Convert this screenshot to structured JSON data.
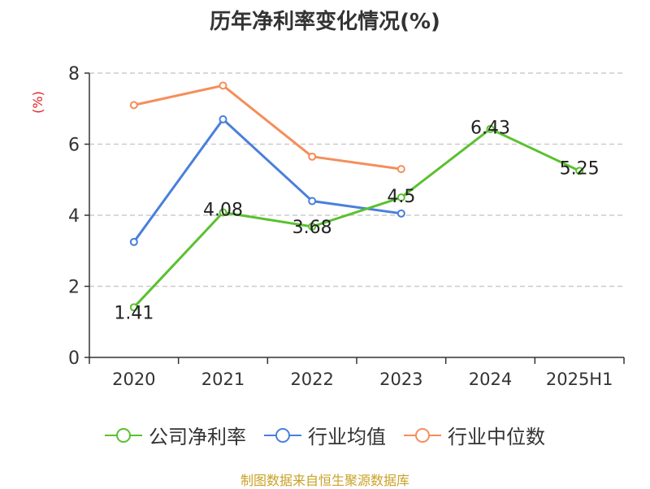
{
  "page": {
    "title": "历年净利率变化情况(%)",
    "source": "制图数据来自恒生聚源数据库"
  },
  "chart_data": {
    "type": "line",
    "title": "历年净利率变化情况(%)",
    "ylabel": "(%)",
    "xlabel": "",
    "categories": [
      "2020",
      "2021",
      "2022",
      "2023",
      "2024",
      "2025H1"
    ],
    "ylim": [
      0,
      8
    ],
    "yticks": [
      0,
      2,
      4,
      6,
      8
    ],
    "grid": true,
    "legend_position": "bottom",
    "series": [
      {
        "name": "公司净利率",
        "color": "#5ac12e",
        "values": [
          1.41,
          4.08,
          3.68,
          4.5,
          6.43,
          5.25
        ],
        "labels": [
          "1.41",
          "4.08",
          "3.68",
          "4.5",
          "6.43",
          "5.25"
        ]
      },
      {
        "name": "行业均值",
        "color": "#4a7fdc",
        "values": [
          3.25,
          6.7,
          4.4,
          4.05,
          null,
          null
        ]
      },
      {
        "name": "行业中位数",
        "color": "#f58e5a",
        "values": [
          7.1,
          7.65,
          5.65,
          5.3,
          null,
          null
        ]
      }
    ],
    "axis_color": "#333333",
    "ylabel_color": "#e02020",
    "grid_color": "#cccccc"
  }
}
